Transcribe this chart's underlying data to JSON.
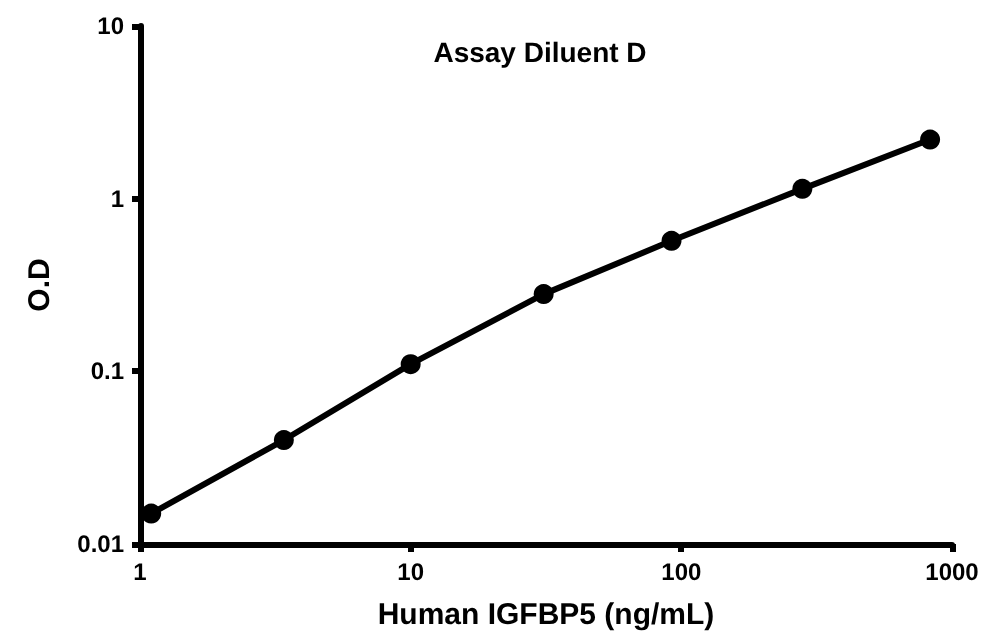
{
  "chart_data": {
    "type": "line",
    "title": "Assay Diluent D",
    "xlabel": "Human IGFBP5 (ng/mL)",
    "ylabel": "O.D",
    "log": "xy",
    "x": [
      1.1,
      3.4,
      10,
      31,
      92,
      280,
      830
    ],
    "series": [
      {
        "color": "#000000",
        "values": [
          0.015,
          0.04,
          0.11,
          0.28,
          0.57,
          1.14,
          2.2
        ]
      }
    ],
    "xlim": [
      1,
      1000
    ],
    "xticks": [
      1,
      10,
      100,
      1000
    ],
    "ylim": [
      0.01,
      10
    ],
    "yticks": [
      0.01,
      0.1,
      1,
      10
    ],
    "marker": "circle",
    "line_style": "solid"
  }
}
